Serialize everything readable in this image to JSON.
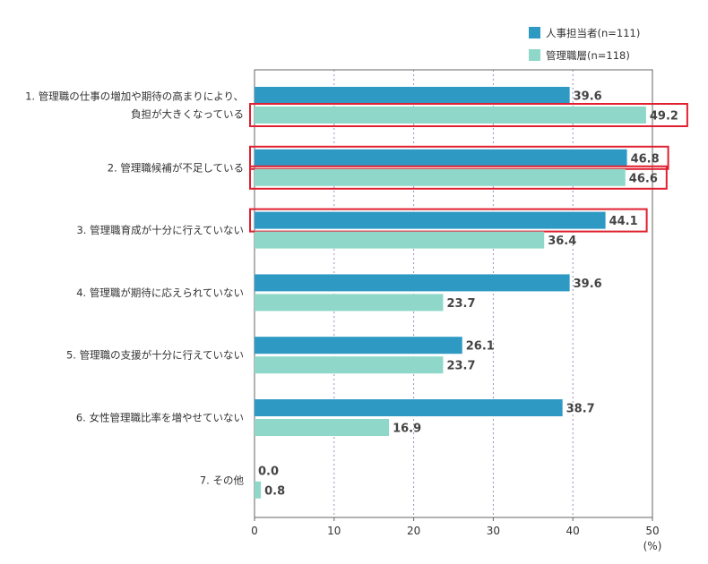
{
  "chart_data": {
    "type": "bar",
    "orientation": "horizontal",
    "categories": [
      [
        "1. 管理職の仕事の増加や期待の高まりにより、",
        "負担が大きくなっている"
      ],
      [
        "2. 管理職候補が不足している"
      ],
      [
        "3. 管理職育成が十分に行えていない"
      ],
      [
        "4. 管理職が期待に応えられていない"
      ],
      [
        "5. 管理職の支援が十分に行えていない"
      ],
      [
        "6. 女性管理職比率を増やせていない"
      ],
      [
        "7. その他"
      ]
    ],
    "series": [
      {
        "name": "人事担当者(n=111)",
        "color": "#2e9ac4",
        "values": [
          39.6,
          46.8,
          44.1,
          39.6,
          26.1,
          38.7,
          0.0
        ],
        "labels": [
          "39.6",
          "46.8",
          "44.1",
          "39.6",
          "26.1",
          "38.7",
          "0.0"
        ]
      },
      {
        "name": "管理職層(n=118)",
        "color": "#8fd8c9",
        "values": [
          49.2,
          46.6,
          36.4,
          23.7,
          23.7,
          16.9,
          0.8
        ],
        "labels": [
          "49.2",
          "46.6",
          "36.4",
          "23.7",
          "23.7",
          "16.9",
          "0.8"
        ]
      }
    ],
    "highlighted": [
      {
        "category": 0,
        "series": 1
      },
      {
        "category": 1,
        "series": 0
      },
      {
        "category": 1,
        "series": 1
      },
      {
        "category": 2,
        "series": 0
      }
    ],
    "highlight_color": "#e02030",
    "xlim": [
      0,
      50
    ],
    "xticks": [
      0,
      10,
      20,
      30,
      40,
      50
    ],
    "xticks_labels": [
      "0",
      "10",
      "20",
      "30",
      "40",
      "50"
    ],
    "xunit": "(%)",
    "grid": "vertical-dotted",
    "legend": "top-right"
  }
}
